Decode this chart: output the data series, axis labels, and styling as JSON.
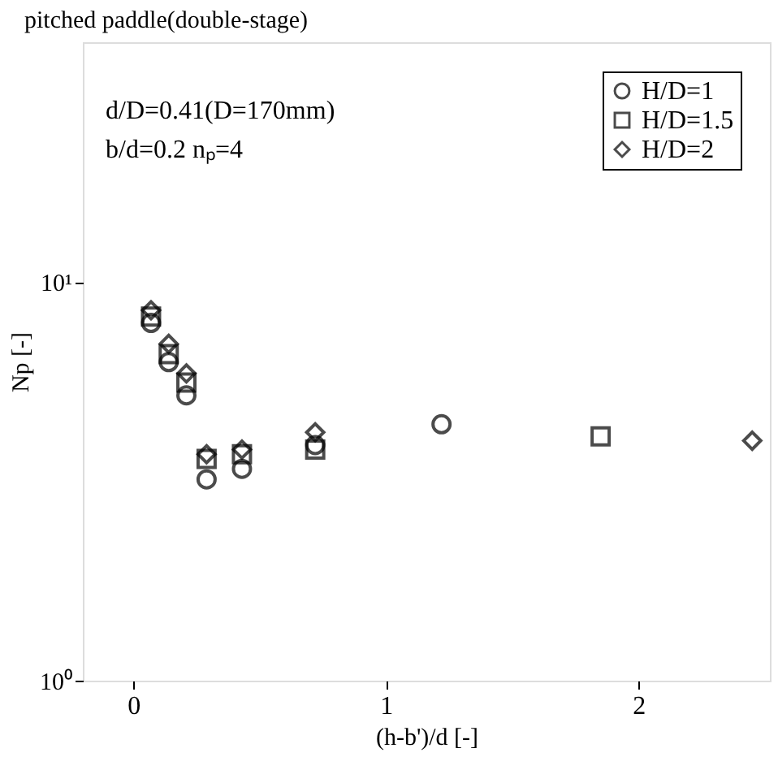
{
  "chart_data": {
    "type": "scatter",
    "title": "pitched paddle(double-stage)",
    "xlabel": "(h-b')/d [-]",
    "ylabel": "Np [-]",
    "annotations": [
      "d/D=0.41(D=170mm)",
      "b/d=0.2 nₚ=4"
    ],
    "log": "y",
    "xlim": [
      -0.2,
      2.52
    ],
    "xticks": [
      0,
      1,
      2
    ],
    "ylim": [
      1,
      40
    ],
    "yticks": [
      {
        "value": 1,
        "label": "10⁰"
      },
      {
        "value": 10,
        "label": "10¹"
      }
    ],
    "grid": false,
    "legend": "top right",
    "series": [
      {
        "name": "H/D=1",
        "color": "#000000",
        "marker": "circle",
        "x": [
          0.07,
          0.14,
          0.21,
          0.29,
          0.43,
          0.72,
          1.22
        ],
        "values": [
          7.9,
          6.3,
          5.2,
          3.2,
          3.4,
          3.9,
          4.4
        ]
      },
      {
        "name": "H/D=1.5",
        "color": "#000000",
        "marker": "square",
        "x": [
          0.07,
          0.14,
          0.21,
          0.29,
          0.43,
          0.72,
          1.85
        ],
        "values": [
          8.2,
          6.6,
          5.6,
          3.6,
          3.7,
          3.8,
          4.1
        ]
      },
      {
        "name": "H/D=2",
        "color": "#000000",
        "marker": "diamond",
        "x": [
          0.07,
          0.14,
          0.21,
          0.29,
          0.43,
          0.72,
          2.45
        ],
        "values": [
          8.5,
          7.0,
          5.9,
          3.7,
          3.8,
          4.2,
          4.0
        ]
      }
    ]
  }
}
